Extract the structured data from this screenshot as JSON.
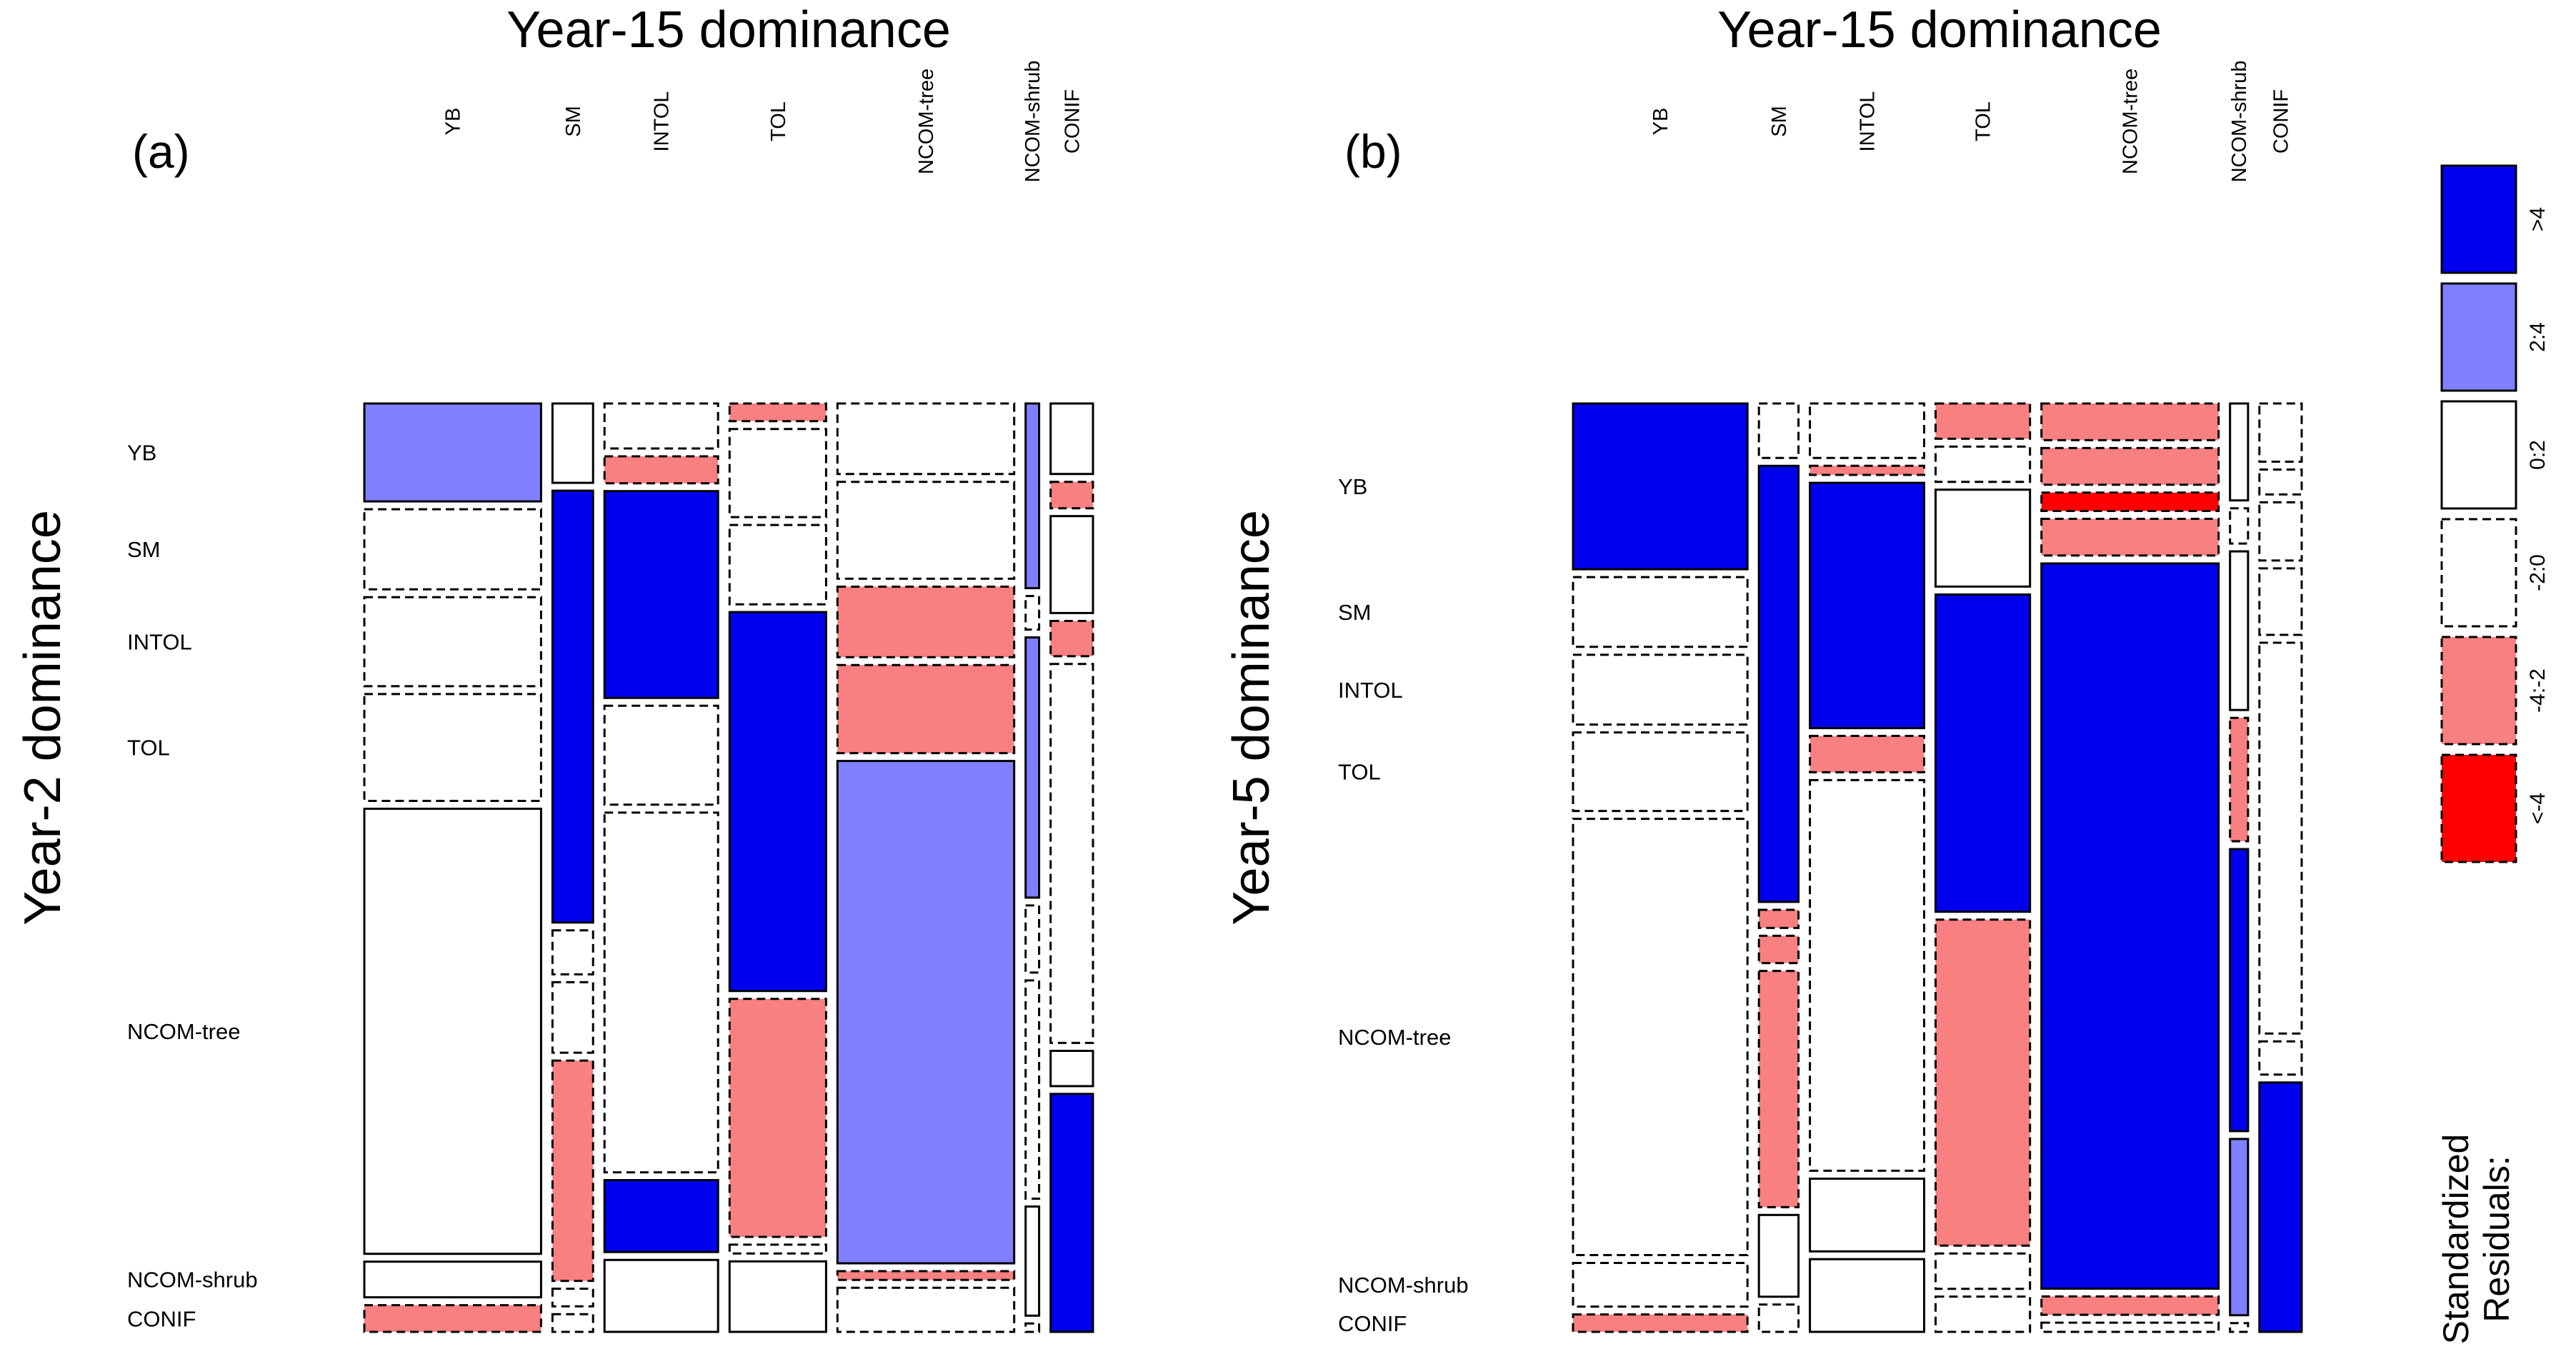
{
  "figure": {
    "panel_a": {
      "label": "(a)",
      "title": "Year-15 dominance",
      "ylabel": "Year-2 dominance"
    },
    "panel_b": {
      "label": "(b)",
      "title": "Year-15 dominance",
      "ylabel": "Year-5 dominance"
    },
    "legend": {
      "title_line1": "Standardized",
      "title_line2": "Residuals:",
      "items": [
        ">4",
        "2:4",
        "0:2",
        "-2:0",
        "-4:-2",
        "<-4"
      ]
    }
  },
  "colors": {
    "strong_positive": "#0000EE",
    "positive": "#8080FF",
    "neutral": "#FFFFFF",
    "negative": "#F88080",
    "strong_negative": "#FF0000",
    "border": "#000000"
  },
  "chart_data": [
    {
      "type": "mosaic",
      "panel": "(a)",
      "title": "Year-15 dominance",
      "ylabel": "Year-2 dominance",
      "columns": [
        "YB",
        "SM",
        "INTOL",
        "TOL",
        "NCOM-tree",
        "NCOM-shrub",
        "CONIF"
      ],
      "rows": [
        "YB",
        "SM",
        "INTOL",
        "TOL",
        "NCOM-tree",
        "NCOM-shrub",
        "CONIF"
      ],
      "column_shares": [
        0.196,
        0.045,
        0.126,
        0.107,
        0.196,
        0.015,
        0.047
      ],
      "cells": [
        {
          "col": "YB",
          "row": "YB",
          "share": 0.11,
          "residual": "2:4"
        },
        {
          "col": "YB",
          "row": "SM",
          "share": 0.09,
          "residual": "-2:0"
        },
        {
          "col": "YB",
          "row": "INTOL",
          "share": 0.1,
          "residual": "-2:0"
        },
        {
          "col": "YB",
          "row": "TOL",
          "share": 0.12,
          "residual": "-2:0"
        },
        {
          "col": "YB",
          "row": "NCOM-tree",
          "share": 0.5,
          "residual": "0:2"
        },
        {
          "col": "YB",
          "row": "NCOM-shrub",
          "share": 0.04,
          "residual": "0:2"
        },
        {
          "col": "YB",
          "row": "CONIF",
          "share": 0.03,
          "residual": "-4:-2"
        },
        {
          "col": "SM",
          "row": "YB",
          "share": 0.09,
          "residual": "0:2"
        },
        {
          "col": "SM",
          "row": "SM",
          "share": 0.49,
          "residual": ">4"
        },
        {
          "col": "SM",
          "row": "INTOL",
          "share": 0.05,
          "residual": "-2:0"
        },
        {
          "col": "SM",
          "row": "TOL",
          "share": 0.08,
          "residual": "-2:0"
        },
        {
          "col": "SM",
          "row": "NCOM-tree",
          "share": 0.25,
          "residual": "-4:-2"
        },
        {
          "col": "SM",
          "row": "NCOM-shrub",
          "share": 0.02,
          "residual": "-2:0"
        },
        {
          "col": "SM",
          "row": "CONIF",
          "share": 0.02,
          "residual": "-2:0"
        },
        {
          "col": "INTOL",
          "row": "YB",
          "share": 0.05,
          "residual": "-2:0"
        },
        {
          "col": "INTOL",
          "row": "SM",
          "share": 0.03,
          "residual": "-4:-2"
        },
        {
          "col": "INTOL",
          "row": "INTOL",
          "share": 0.23,
          "residual": ">4"
        },
        {
          "col": "INTOL",
          "row": "TOL",
          "share": 0.11,
          "residual": "-2:0"
        },
        {
          "col": "INTOL",
          "row": "NCOM-tree",
          "share": 0.4,
          "residual": "-2:0"
        },
        {
          "col": "INTOL",
          "row": "NCOM-shrub",
          "share": 0.08,
          "residual": ">4"
        },
        {
          "col": "INTOL",
          "row": "CONIF",
          "share": 0.08,
          "residual": "0:2"
        },
        {
          "col": "TOL",
          "row": "YB",
          "share": 0.02,
          "residual": "-4:-2"
        },
        {
          "col": "TOL",
          "row": "SM",
          "share": 0.1,
          "residual": "-2:0"
        },
        {
          "col": "TOL",
          "row": "INTOL",
          "share": 0.09,
          "residual": "-2:0"
        },
        {
          "col": "TOL",
          "row": "TOL",
          "share": 0.43,
          "residual": ">4"
        },
        {
          "col": "TOL",
          "row": "NCOM-tree",
          "share": 0.27,
          "residual": "-4:-2"
        },
        {
          "col": "TOL",
          "row": "NCOM-shrub",
          "share": 0.01,
          "residual": "-2:0"
        },
        {
          "col": "TOL",
          "row": "CONIF",
          "share": 0.08,
          "residual": "0:2"
        },
        {
          "col": "NCOM-tree",
          "row": "YB",
          "share": 0.08,
          "residual": "-2:0"
        },
        {
          "col": "NCOM-tree",
          "row": "SM",
          "share": 0.11,
          "residual": "-2:0"
        },
        {
          "col": "NCOM-tree",
          "row": "INTOL",
          "share": 0.08,
          "residual": "-4:-2"
        },
        {
          "col": "NCOM-tree",
          "row": "TOL",
          "share": 0.1,
          "residual": "-4:-2"
        },
        {
          "col": "NCOM-tree",
          "row": "NCOM-tree",
          "share": 0.57,
          "residual": "2:4"
        },
        {
          "col": "NCOM-tree",
          "row": "NCOM-shrub",
          "share": 0.01,
          "residual": "-4:-2"
        },
        {
          "col": "NCOM-tree",
          "row": "CONIF",
          "share": 0.05,
          "residual": "-2:0"
        },
        {
          "col": "NCOM-shrub",
          "row": "YB",
          "share": 0.22,
          "residual": "2:4"
        },
        {
          "col": "NCOM-shrub",
          "row": "SM",
          "share": 0.04,
          "residual": "-2:0"
        },
        {
          "col": "NCOM-shrub",
          "row": "INTOL",
          "share": 0.31,
          "residual": "2:4"
        },
        {
          "col": "NCOM-shrub",
          "row": "TOL",
          "share": 0.08,
          "residual": "-2:0"
        },
        {
          "col": "NCOM-shrub",
          "row": "NCOM-tree",
          "share": 0.26,
          "residual": "-2:0"
        },
        {
          "col": "NCOM-shrub",
          "row": "NCOM-shrub",
          "share": 0.13,
          "residual": "0:2"
        },
        {
          "col": "NCOM-shrub",
          "row": "CONIF",
          "share": 0.01,
          "residual": "-2:0"
        },
        {
          "col": "CONIF",
          "row": "YB",
          "share": 0.08,
          "residual": "0:2"
        },
        {
          "col": "CONIF",
          "row": "SM",
          "share": 0.03,
          "residual": "-4:-2"
        },
        {
          "col": "CONIF",
          "row": "INTOL",
          "share": 0.11,
          "residual": "0:2"
        },
        {
          "col": "CONIF",
          "row": "TOL",
          "share": 0.04,
          "residual": "-4:-2"
        },
        {
          "col": "CONIF",
          "row": "NCOM-tree",
          "share": 0.43,
          "residual": "-2:0"
        },
        {
          "col": "CONIF",
          "row": "NCOM-shrub",
          "share": 0.04,
          "residual": "0:2"
        },
        {
          "col": "CONIF",
          "row": "CONIF",
          "share": 0.27,
          "residual": ">4"
        }
      ]
    },
    {
      "type": "mosaic",
      "panel": "(b)",
      "title": "Year-15 dominance",
      "ylabel": "Year-5 dominance",
      "columns": [
        "YB",
        "SM",
        "INTOL",
        "TOL",
        "NCOM-tree",
        "NCOM-shrub",
        "CONIF"
      ],
      "rows": [
        "YB",
        "SM",
        "INTOL",
        "TOL",
        "NCOM-tree",
        "NCOM-shrub",
        "CONIF"
      ],
      "column_shares": [
        0.194,
        0.044,
        0.127,
        0.105,
        0.197,
        0.02,
        0.047
      ],
      "cells": [
        {
          "col": "YB",
          "row": "YB",
          "share": 0.19,
          "residual": ">4"
        },
        {
          "col": "YB",
          "row": "SM",
          "share": 0.08,
          "residual": "-2:0"
        },
        {
          "col": "YB",
          "row": "INTOL",
          "share": 0.08,
          "residual": "-2:0"
        },
        {
          "col": "YB",
          "row": "TOL",
          "share": 0.09,
          "residual": "-2:0"
        },
        {
          "col": "YB",
          "row": "NCOM-tree",
          "share": 0.5,
          "residual": "-2:0"
        },
        {
          "col": "YB",
          "row": "NCOM-shrub",
          "share": 0.05,
          "residual": "-2:0"
        },
        {
          "col": "YB",
          "row": "CONIF",
          "share": 0.02,
          "residual": "-4:-2"
        },
        {
          "col": "SM",
          "row": "YB",
          "share": 0.06,
          "residual": "-2:0"
        },
        {
          "col": "SM",
          "row": "SM",
          "share": 0.48,
          "residual": ">4"
        },
        {
          "col": "SM",
          "row": "INTOL",
          "share": 0.02,
          "residual": "-4:-2"
        },
        {
          "col": "SM",
          "row": "TOL",
          "share": 0.03,
          "residual": "-4:-2"
        },
        {
          "col": "SM",
          "row": "NCOM-tree",
          "share": 0.26,
          "residual": "-4:-2"
        },
        {
          "col": "SM",
          "row": "NCOM-shrub",
          "share": 0.09,
          "residual": "0:2"
        },
        {
          "col": "SM",
          "row": "CONIF",
          "share": 0.03,
          "residual": "-2:0"
        },
        {
          "col": "INTOL",
          "row": "YB",
          "share": 0.06,
          "residual": "-2:0"
        },
        {
          "col": "INTOL",
          "row": "SM",
          "share": 0.01,
          "residual": "-4:-2"
        },
        {
          "col": "INTOL",
          "row": "INTOL",
          "share": 0.27,
          "residual": ">4"
        },
        {
          "col": "INTOL",
          "row": "TOL",
          "share": 0.04,
          "residual": "-4:-2"
        },
        {
          "col": "INTOL",
          "row": "NCOM-tree",
          "share": 0.43,
          "residual": "-2:0"
        },
        {
          "col": "INTOL",
          "row": "NCOM-shrub",
          "share": 0.08,
          "residual": "0:2"
        },
        {
          "col": "INTOL",
          "row": "CONIF",
          "share": 0.08,
          "residual": "0:2"
        },
        {
          "col": "TOL",
          "row": "YB",
          "share": 0.04,
          "residual": "-4:-2"
        },
        {
          "col": "TOL",
          "row": "SM",
          "share": 0.04,
          "residual": "-2:0"
        },
        {
          "col": "TOL",
          "row": "INTOL",
          "share": 0.11,
          "residual": "0:2"
        },
        {
          "col": "TOL",
          "row": "TOL",
          "share": 0.36,
          "residual": ">4"
        },
        {
          "col": "TOL",
          "row": "NCOM-tree",
          "share": 0.37,
          "residual": "-4:-2"
        },
        {
          "col": "TOL",
          "row": "NCOM-shrub",
          "share": 0.04,
          "residual": "-2:0"
        },
        {
          "col": "TOL",
          "row": "CONIF",
          "share": 0.04,
          "residual": "-2:0"
        },
        {
          "col": "NCOM-tree",
          "row": "YB",
          "share": 0.04,
          "residual": "-4:-2"
        },
        {
          "col": "NCOM-tree",
          "row": "SM",
          "share": 0.04,
          "residual": "-4:-2"
        },
        {
          "col": "NCOM-tree",
          "row": "INTOL",
          "share": 0.02,
          "residual": "<-4"
        },
        {
          "col": "NCOM-tree",
          "row": "TOL",
          "share": 0.04,
          "residual": "-4:-2"
        },
        {
          "col": "NCOM-tree",
          "row": "NCOM-tree",
          "share": 0.79,
          "residual": ">4"
        },
        {
          "col": "NCOM-tree",
          "row": "NCOM-shrub",
          "share": 0.02,
          "residual": "-4:-2"
        },
        {
          "col": "NCOM-tree",
          "row": "CONIF",
          "share": 0.01,
          "residual": "-2:0"
        },
        {
          "col": "NCOM-shrub",
          "row": "YB",
          "share": 0.11,
          "residual": "0:2"
        },
        {
          "col": "NCOM-shrub",
          "row": "SM",
          "share": 0.04,
          "residual": "-2:0"
        },
        {
          "col": "NCOM-shrub",
          "row": "INTOL",
          "share": 0.18,
          "residual": "0:2"
        },
        {
          "col": "NCOM-shrub",
          "row": "TOL",
          "share": 0.14,
          "residual": "-4:-2"
        },
        {
          "col": "NCOM-shrub",
          "row": "NCOM-tree",
          "share": 0.32,
          "residual": ">4"
        },
        {
          "col": "NCOM-shrub",
          "row": "NCOM-shrub",
          "share": 0.2,
          "residual": "2:4"
        },
        {
          "col": "NCOM-shrub",
          "row": "CONIF",
          "share": 0.01,
          "residual": "-2:0"
        },
        {
          "col": "CONIF",
          "row": "YB",
          "share": 0.07,
          "residual": "-2:0"
        },
        {
          "col": "CONIF",
          "row": "SM",
          "share": 0.03,
          "residual": "-2:0"
        },
        {
          "col": "CONIF",
          "row": "INTOL",
          "share": 0.07,
          "residual": "-2:0"
        },
        {
          "col": "CONIF",
          "row": "TOL",
          "share": 0.08,
          "residual": "-2:0"
        },
        {
          "col": "CONIF",
          "row": "NCOM-tree",
          "share": 0.47,
          "residual": "-2:0"
        },
        {
          "col": "CONIF",
          "row": "NCOM-shrub",
          "share": 0.04,
          "residual": "-2:0"
        },
        {
          "col": "CONIF",
          "row": "CONIF",
          "share": 0.3,
          "residual": ">4"
        }
      ]
    }
  ]
}
